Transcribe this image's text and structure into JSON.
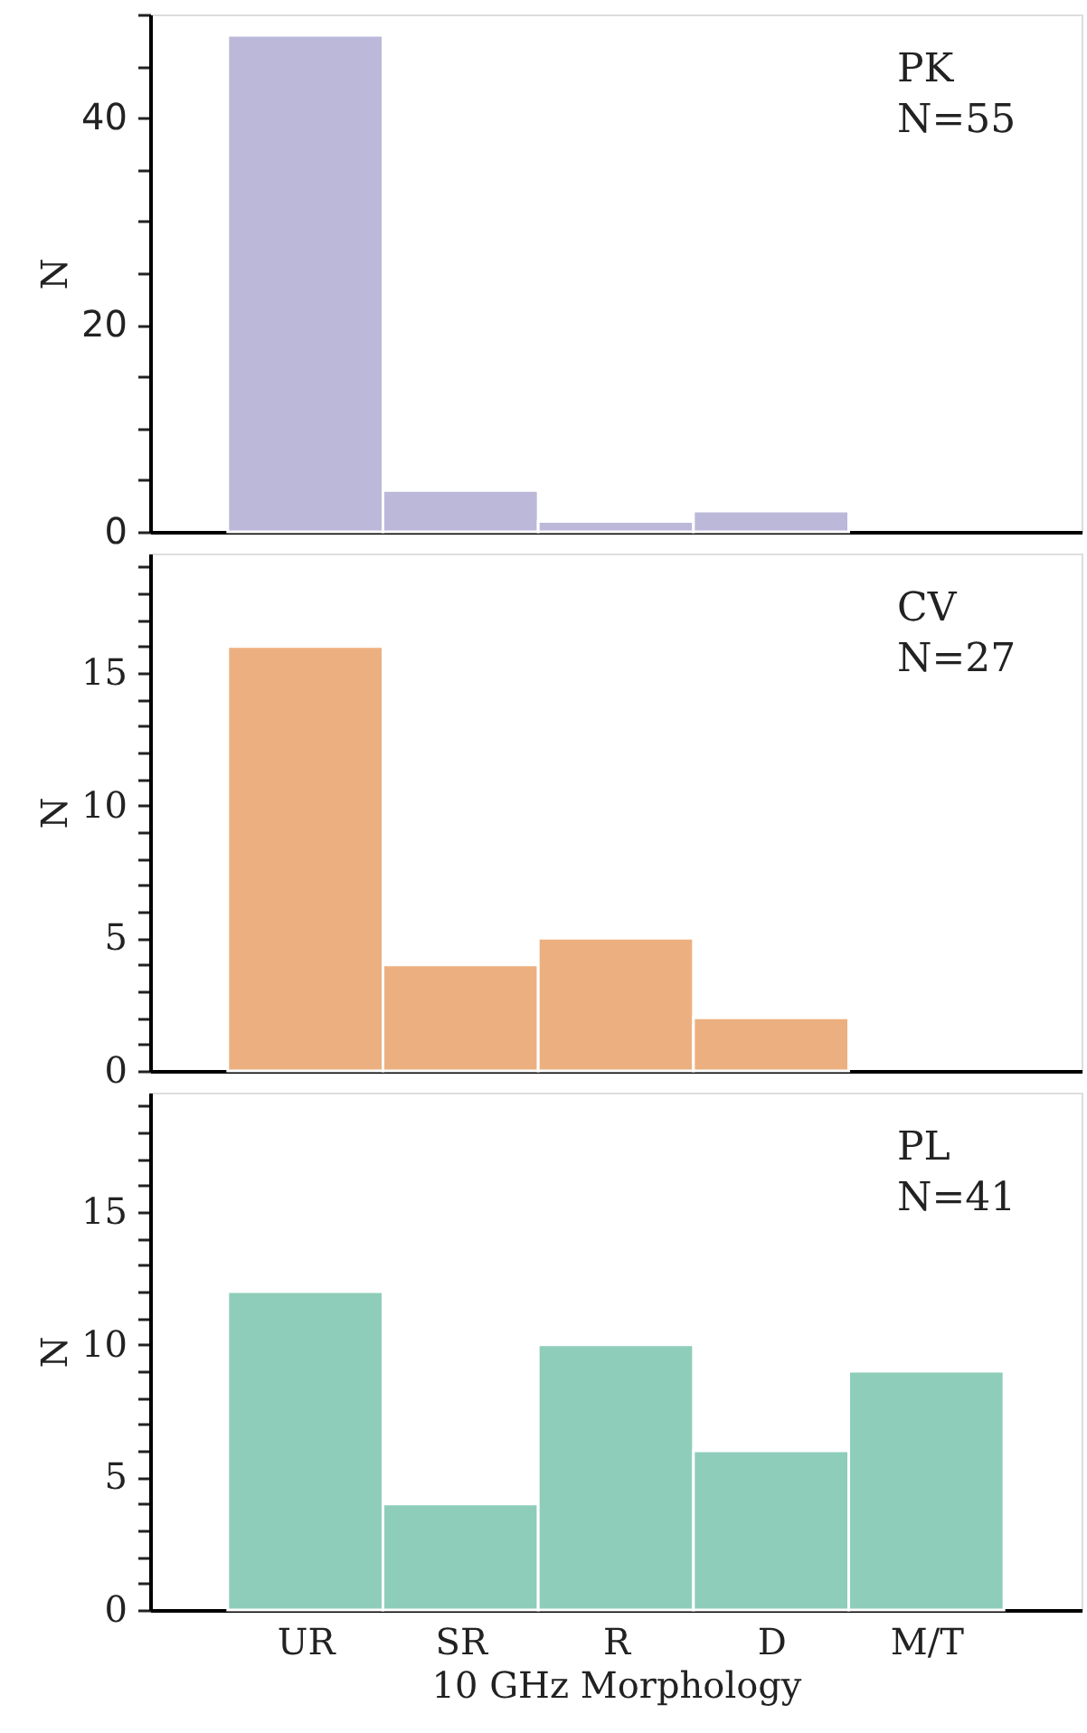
{
  "chart_data": [
    {
      "type": "bar",
      "categories": [
        null,
        null,
        null,
        null,
        null
      ],
      "values": [
        48,
        4,
        1,
        2,
        0
      ],
      "color": "#bbb8da",
      "ylabel": "N",
      "annotations": [
        "PK",
        "N=55"
      ],
      "ylim": [
        0,
        50
      ],
      "yticks": [
        0,
        {
          "value": 5,
          "label": null
        },
        {
          "value": 10,
          "label": null
        },
        {
          "value": 15,
          "label": null
        },
        20,
        {
          "value": 25,
          "label": null
        },
        {
          "value": 30,
          "label": null
        },
        {
          "value": 35,
          "label": null
        },
        40,
        {
          "value": 45,
          "label": null
        },
        {
          "value": 50,
          "label": null
        }
      ],
      "tick_labels": "y",
      "grid": false
    },
    {
      "type": "bar",
      "categories": [
        null,
        null,
        null,
        null,
        null
      ],
      "values": [
        16,
        4,
        5,
        2,
        0
      ],
      "color": "#ecb080",
      "ylabel": "N",
      "annotations": [
        "CV",
        "N=27"
      ],
      "ylim": [
        0,
        19.5
      ],
      "yticks": [
        0,
        {
          "value": 1,
          "label": null
        },
        {
          "value": 2,
          "label": null
        },
        {
          "value": 3,
          "label": null
        },
        {
          "value": 4,
          "label": null
        },
        5,
        {
          "value": 6,
          "label": null
        },
        {
          "value": 7,
          "label": null
        },
        {
          "value": 8,
          "label": null
        },
        {
          "value": 9,
          "label": null
        },
        10,
        {
          "value": 11,
          "label": null
        },
        {
          "value": 12,
          "label": null
        },
        {
          "value": 13,
          "label": null
        },
        {
          "value": 14,
          "label": null
        },
        15,
        {
          "value": 16,
          "label": null
        },
        {
          "value": 17,
          "label": null
        },
        {
          "value": 18,
          "label": null
        },
        {
          "value": 19,
          "label": null
        }
      ],
      "tick_labels": "y",
      "grid": false
    },
    {
      "type": "bar",
      "categories": [
        "UR",
        "SR",
        "R",
        "D",
        "M/T"
      ],
      "values": [
        12,
        4,
        10,
        6,
        9
      ],
      "color": "#8ecdb9",
      "xlabel": "10 GHz Morphology",
      "ylabel": "N",
      "annotations": [
        "PL",
        "N=41"
      ],
      "ylim": [
        0,
        19.5
      ],
      "yticks": [
        0,
        {
          "value": 1,
          "label": null
        },
        {
          "value": 2,
          "label": null
        },
        {
          "value": 3,
          "label": null
        },
        {
          "value": 4,
          "label": null
        },
        5,
        {
          "value": 6,
          "label": null
        },
        {
          "value": 7,
          "label": null
        },
        {
          "value": 8,
          "label": null
        },
        {
          "value": 9,
          "label": null
        },
        10,
        {
          "value": 11,
          "label": null
        },
        {
          "value": 12,
          "label": null
        },
        {
          "value": 13,
          "label": null
        },
        {
          "value": 14,
          "label": null
        },
        15,
        {
          "value": 16,
          "label": null
        },
        {
          "value": 17,
          "label": null
        },
        {
          "value": 18,
          "label": null
        },
        {
          "value": 19,
          "label": null
        }
      ],
      "grid": false
    }
  ]
}
